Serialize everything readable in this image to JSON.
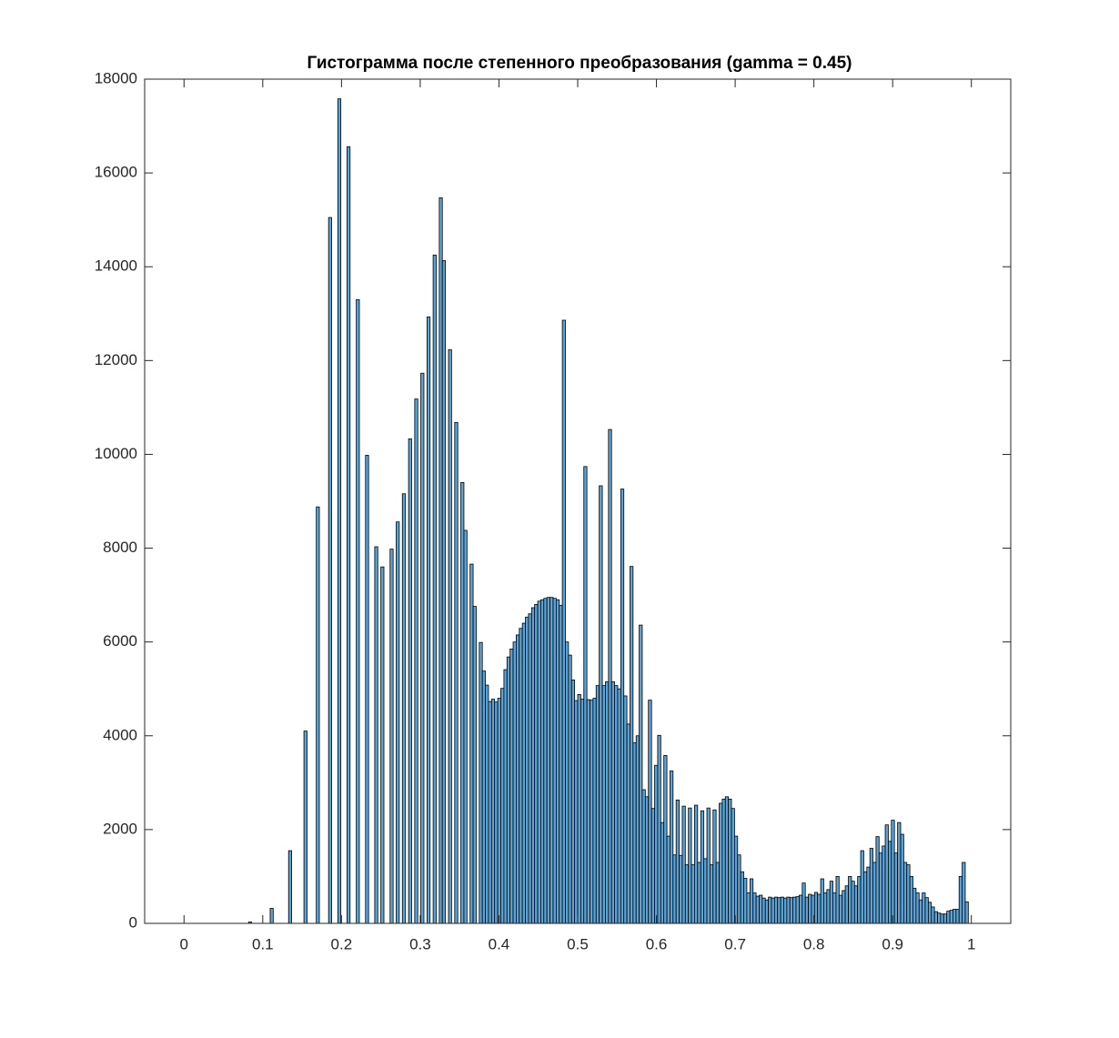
{
  "chart_data": {
    "type": "histogram",
    "title": "Гистограмма после степенного преобразования (gamma = 0.45)",
    "color": "#5ca3d6",
    "xlim": [
      -0.05,
      1.05
    ],
    "ylim": [
      0,
      18000
    ],
    "xticks": [
      0,
      0.1,
      0.2,
      0.3,
      0.4,
      0.5,
      0.6,
      0.7,
      0.8,
      0.9,
      1
    ],
    "yticks": [
      0,
      2000,
      4000,
      6000,
      8000,
      10000,
      12000,
      14000,
      16000,
      18000
    ],
    "bins": [
      0,
      0.0039,
      0.0078,
      0.0117,
      0.0156,
      0.0195,
      0.0234,
      0.0273,
      0.0313,
      0.0352,
      0.0391,
      0.043,
      0.0469,
      0.0508,
      0.0547,
      0.0586,
      0.0625,
      0.0664,
      0.0703,
      0.0742,
      0.0781,
      0.082,
      0.0859,
      0.0898,
      0.0938,
      0.0977,
      0.1016,
      0.1055,
      0.1094,
      0.1133,
      0.1172,
      0.1211,
      0.125,
      0.1289,
      0.1328,
      0.1367,
      0.1406,
      0.1445,
      0.1484,
      0.1523,
      0.1563,
      0.1602,
      0.1641,
      0.168,
      0.1719,
      0.1758,
      0.1797,
      0.1836,
      0.1875,
      0.1914,
      0.1953,
      0.1992,
      0.2031,
      0.207,
      0.2109,
      0.2148,
      0.2188,
      0.2227,
      0.2266,
      0.2305,
      0.2344,
      0.2383,
      0.2422,
      0.2461,
      0.25,
      0.2539,
      0.2578,
      0.2617,
      0.2656,
      0.2695,
      0.2734,
      0.2773,
      0.2813,
      0.2852,
      0.2891,
      0.293,
      0.2969,
      0.3008,
      0.3047,
      0.3086,
      0.3125,
      0.3164,
      0.3203,
      0.3242,
      0.3281,
      0.332,
      0.3359,
      0.3398,
      0.3438,
      0.3477,
      0.3516,
      0.3555,
      0.3594,
      0.3633,
      0.3672,
      0.3711,
      0.375,
      0.3789,
      0.3828,
      0.3867,
      0.3906,
      0.3945,
      0.3984,
      0.4023,
      0.4063,
      0.4102,
      0.4141,
      0.418,
      0.4219,
      0.4258,
      0.4297,
      0.4336,
      0.4375,
      0.4414,
      0.4453,
      0.4492,
      0.4531,
      0.457,
      0.4609,
      0.4648,
      0.4688,
      0.4727,
      0.4766,
      0.4805,
      0.4844,
      0.4883,
      0.4922,
      0.4961,
      0.5,
      0.5039,
      0.5078,
      0.5117,
      0.5156,
      0.5195,
      0.5234,
      0.5273,
      0.5313,
      0.5352,
      0.5391,
      0.543,
      0.5469,
      0.5508,
      0.5547,
      0.5586,
      0.5625,
      0.5664,
      0.5703,
      0.5742,
      0.5781,
      0.582,
      0.5859,
      0.5898,
      0.5938,
      0.5977,
      0.6016,
      0.6055,
      0.6094,
      0.6133,
      0.6172,
      0.6211,
      0.625,
      0.6289,
      0.6328,
      0.6367,
      0.6406,
      0.6445,
      0.6484,
      0.6523,
      0.6563,
      0.6602,
      0.6641,
      0.668,
      0.6719,
      0.6758,
      0.6797,
      0.6836,
      0.6875,
      0.6914,
      0.6953,
      0.6992,
      0.7031,
      0.707,
      0.7109,
      0.7148,
      0.7188,
      0.7227,
      0.7266,
      0.7305,
      0.7344,
      0.7383,
      0.7422,
      0.7461,
      0.75,
      0.7539,
      0.7578,
      0.7617,
      0.7656,
      0.7695,
      0.7734,
      0.7773,
      0.7813,
      0.7852,
      0.7891,
      0.793,
      0.7969,
      0.8008,
      0.8047,
      0.8086,
      0.8125,
      0.8164,
      0.8203,
      0.8242,
      0.8281,
      0.832,
      0.8359,
      0.8398,
      0.8438,
      0.8477,
      0.8516,
      0.8555,
      0.8594,
      0.8633,
      0.8672,
      0.8711,
      0.875,
      0.8789,
      0.8828,
      0.8867,
      0.8906,
      0.8945,
      0.8984,
      0.9023,
      0.9063,
      0.9102,
      0.9141,
      0.918,
      0.9219,
      0.9258,
      0.9297,
      0.9336,
      0.9375,
      0.9414,
      0.9453,
      0.9492,
      0.9531,
      0.957,
      0.9609,
      0.9648,
      0.9688,
      0.9727,
      0.9766,
      0.9805,
      0.9844,
      0.9883,
      0.9922,
      0.9961,
      1
    ],
    "values": [
      0,
      0,
      0,
      0,
      0,
      0,
      0,
      0,
      0,
      0,
      0,
      0,
      0,
      0,
      0,
      0,
      0,
      0,
      0,
      0,
      0,
      30,
      0,
      0,
      0,
      0,
      0,
      0,
      320,
      0,
      0,
      0,
      0,
      0,
      1550,
      0,
      0,
      0,
      0,
      4100,
      0,
      0,
      0,
      8880,
      0,
      0,
      0,
      15050,
      0,
      0,
      17580,
      0,
      0,
      16560,
      0,
      0,
      13300,
      0,
      0,
      9980,
      0,
      0,
      8030,
      0,
      7600,
      0,
      0,
      7980,
      0,
      8560,
      0,
      9160,
      0,
      10330,
      0,
      11180,
      0,
      11730,
      0,
      12930,
      0,
      14250,
      0,
      15470,
      14130,
      0,
      12230,
      0,
      10680,
      0,
      9400,
      8380,
      0,
      7660,
      6760,
      0,
      5990,
      5380,
      5080,
      4730,
      4780,
      4720,
      4800,
      5010,
      5410,
      5680,
      5850,
      6000,
      6150,
      6290,
      6400,
      6530,
      6600,
      6730,
      6800,
      6870,
      6900,
      6930,
      6950,
      6950,
      6930,
      6900,
      6780,
      12860,
      6000,
      5720,
      5190,
      4750,
      4880,
      4780,
      9740,
      4770,
      4760,
      4800,
      5070,
      9330,
      5070,
      5150,
      10530,
      5150,
      5070,
      5000,
      9260,
      4850,
      4250,
      7610,
      3850,
      4000,
      6360,
      2850,
      2700,
      4760,
      2450,
      3370,
      4010,
      2150,
      3580,
      1860,
      3250,
      1460,
      2630,
      1450,
      2500,
      1250,
      2460,
      1250,
      2520,
      1300,
      2400,
      1380,
      2460,
      1250,
      2420,
      1300,
      2560,
      2650,
      2700,
      2650,
      2450,
      1860,
      1460,
      1100,
      960,
      650,
      950,
      650,
      580,
      600,
      540,
      500,
      560,
      540,
      560,
      550,
      560,
      540,
      560,
      550,
      560,
      570,
      600,
      860,
      560,
      620,
      600,
      660,
      620,
      950,
      650,
      720,
      900,
      650,
      1000,
      600,
      700,
      800,
      1000,
      900,
      800,
      1000,
      1550,
      1100,
      1200,
      1600,
      1300,
      1850,
      1500,
      1650,
      2100,
      1750,
      2200,
      1500,
      2150,
      1900,
      1300,
      1250,
      1000,
      750,
      650,
      500,
      650,
      550,
      450,
      350,
      250,
      220,
      200,
      200,
      260,
      280,
      300,
      300,
      1000,
      1300,
      460,
      0
    ]
  }
}
